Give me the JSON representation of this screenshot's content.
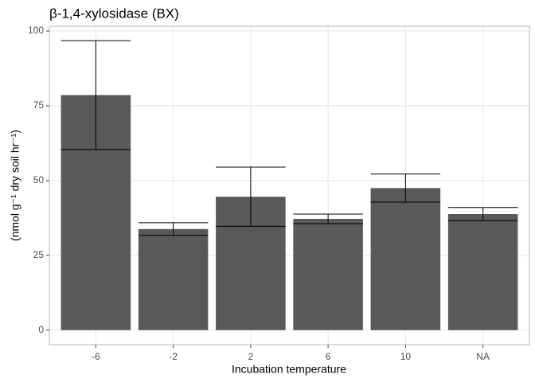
{
  "chart_data": {
    "type": "bar",
    "title": "β-1,4-xylosidase (BX)",
    "x_label": "Incubation temperature",
    "y_label": "(nmol g⁻¹ dry soil hr⁻¹)",
    "categories": [
      "-6",
      "-2",
      "2",
      "6",
      "10",
      "NA"
    ],
    "values": [
      78.6,
      33.8,
      44.6,
      37.2,
      47.5,
      38.8
    ],
    "errors": [
      18.2,
      2.1,
      9.9,
      1.6,
      4.7,
      2.2
    ],
    "color": "#595959",
    "ylim": [
      -4.84,
      101.6
    ],
    "yticks": [
      0,
      25,
      50,
      75,
      100
    ],
    "grid": true
  }
}
